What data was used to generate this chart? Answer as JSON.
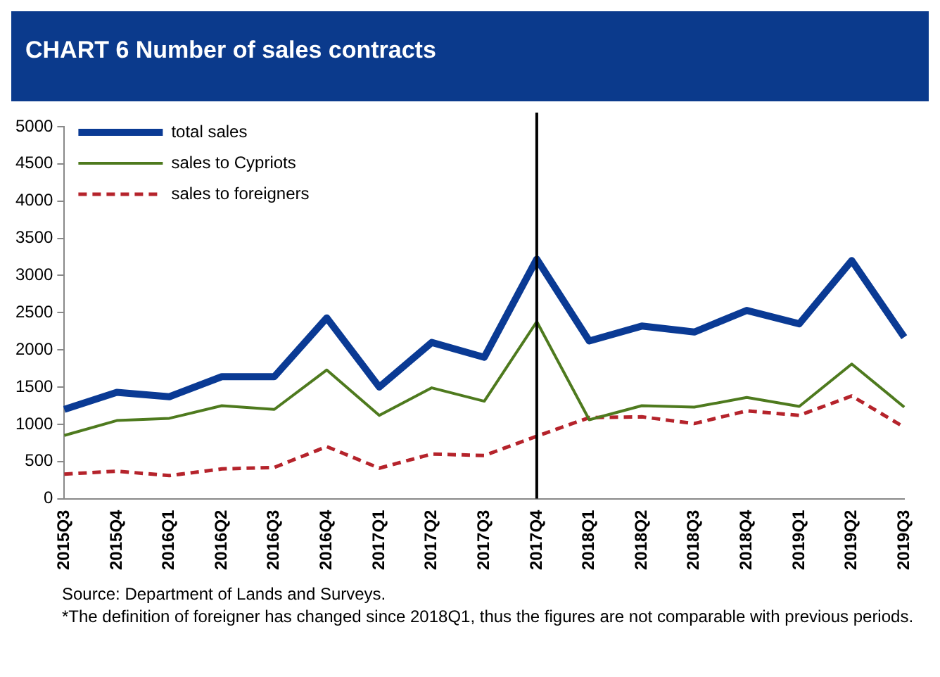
{
  "chart_data": {
    "type": "line",
    "title": "CHART 6  Number of sales contracts",
    "categories": [
      "2015Q3",
      "2015Q4",
      "2016Q1",
      "2016Q2",
      "2016Q3",
      "2016Q4",
      "2017Q1",
      "2017Q2",
      "2017Q3",
      "2017Q4",
      "2018Q1",
      "2018Q2",
      "2018Q3",
      "2018Q4",
      "2019Q1",
      "2019Q2",
      "2019Q3"
    ],
    "series": [
      {
        "name": "total sales",
        "color": "#0a3a94",
        "line_style": "solid",
        "values": [
          1200,
          1430,
          1370,
          1640,
          1640,
          2430,
          1500,
          2100,
          1900,
          3220,
          2120,
          2320,
          2240,
          2530,
          2350,
          3200,
          2170
        ]
      },
      {
        "name": "sales to Cypriots",
        "color": "#4e7a1e",
        "line_style": "solid",
        "values": [
          850,
          1050,
          1080,
          1250,
          1200,
          1730,
          1120,
          1490,
          1310,
          2380,
          1060,
          1250,
          1230,
          1360,
          1240,
          1810,
          1230
        ]
      },
      {
        "name": "sales to foreigners",
        "color": "#b5232b",
        "line_style": "dashed",
        "values": [
          330,
          370,
          310,
          400,
          420,
          700,
          410,
          600,
          580,
          840,
          1090,
          1100,
          1010,
          1180,
          1120,
          1380,
          960
        ]
      }
    ],
    "ylim": [
      0,
      5000
    ],
    "yticks": [
      0,
      500,
      1000,
      1500,
      2000,
      2500,
      3000,
      3500,
      4000,
      4500,
      5000
    ],
    "grid": false,
    "legend": "top left",
    "marker": "none",
    "ref_lines": [
      {
        "axis": "x",
        "value": "2017Q4",
        "color": "#000000"
      }
    ],
    "annotations": [
      "Source: Department of Lands and Surveys.",
      "*The definition of foreigner has changed since 2018Q1, thus the figures are not comparable with previous periods."
    ]
  }
}
